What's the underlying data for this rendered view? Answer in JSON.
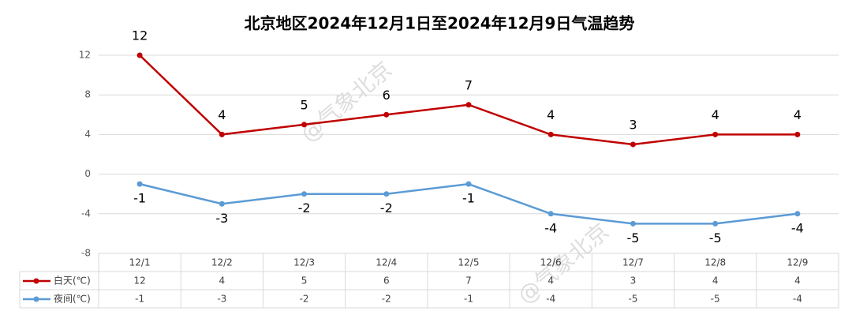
{
  "chart_data": {
    "type": "line",
    "title": "北京地区2024年12月1日至2024年12月9日气温趋势",
    "watermark": "@气象北京",
    "categories": [
      "12/1",
      "12/2",
      "12/3",
      "12/4",
      "12/5",
      "12/6",
      "12/7",
      "12/8",
      "12/9"
    ],
    "series": [
      {
        "name": "白天(℃)",
        "color": "#c00000",
        "values": [
          12,
          4,
          5,
          6,
          7,
          4,
          3,
          4,
          4
        ]
      },
      {
        "name": "夜间(℃)",
        "color": "#5b9bd5",
        "values": [
          -1,
          -3,
          -2,
          -2,
          -1,
          -4,
          -5,
          -5,
          -4
        ]
      }
    ],
    "ylim": [
      -8,
      12
    ],
    "yticks": [
      -8,
      -4,
      0,
      4,
      8,
      12
    ],
    "grid": true
  }
}
